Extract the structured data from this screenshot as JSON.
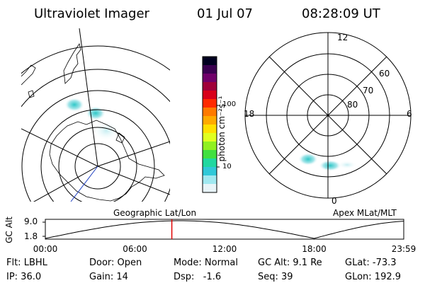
{
  "header": {
    "instrument": "Ultraviolet Imager",
    "date": "01 Jul 07",
    "time": "08:28:09 UT"
  },
  "geo_panel": {
    "title": "Geographic Lat/Lon"
  },
  "mag_panel": {
    "title": "Apex MLat/MLT",
    "mlt_labels": {
      "top": "12",
      "left": "18",
      "right": "6",
      "bottom": "0"
    },
    "lat_labels": [
      "60",
      "70",
      "80"
    ]
  },
  "colorbar": {
    "label": "photon cm⁻²s⁻¹",
    "ticks": [
      "100",
      "10"
    ],
    "colors": [
      "#000020",
      "#3a0050",
      "#70006a",
      "#a0003a",
      "#d8001a",
      "#ff2a00",
      "#ff7a00",
      "#ffaa00",
      "#ffe000",
      "#e0ff20",
      "#90f020",
      "#40e040",
      "#20d8a0",
      "#30c8d8",
      "#a0e8f0",
      "#e8f4f8"
    ]
  },
  "timeline": {
    "axis_label": "GC Alt",
    "y_ticks": [
      "9.0",
      "1.8"
    ],
    "x_ticks": [
      "00:00",
      "06:00",
      "12:00",
      "18:00",
      "23:59"
    ],
    "current_time_hours": 8.47
  },
  "info": {
    "flt": "Flt: LBHL",
    "ip": "IP: 36.0",
    "door": "Door: Open",
    "gain": "Gain: 14",
    "mode": "Mode: Normal",
    "dsp": "Dsp:   -1.6",
    "gcalt": "GC Alt: 9.1 Re",
    "seq": "Seq: 39",
    "glat": "GLat: -73.3",
    "glon": "GLon: 192.9"
  }
}
